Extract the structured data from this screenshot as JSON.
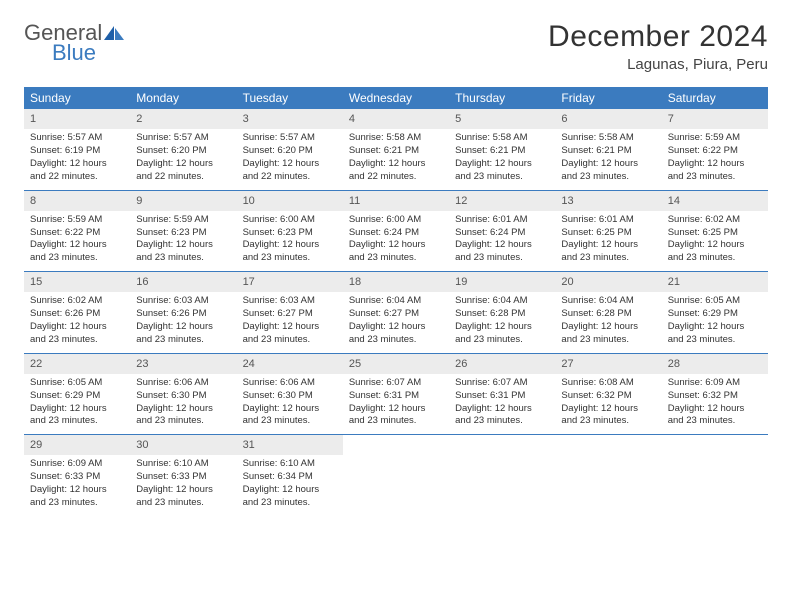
{
  "brand": {
    "name_a": "General",
    "name_b": "Blue",
    "color_a": "#555555",
    "color_b": "#3b7bbf"
  },
  "title": "December 2024",
  "location": "Lagunas, Piura, Peru",
  "header_bg": "#3b7bbf",
  "daynum_bg": "#ececec",
  "border_color": "#3b7bbf",
  "day_names": [
    "Sunday",
    "Monday",
    "Tuesday",
    "Wednesday",
    "Thursday",
    "Friday",
    "Saturday"
  ],
  "weeks": [
    [
      {
        "n": "1",
        "sr": "5:57 AM",
        "ss": "6:19 PM",
        "dl": "12 hours and 22 minutes."
      },
      {
        "n": "2",
        "sr": "5:57 AM",
        "ss": "6:20 PM",
        "dl": "12 hours and 22 minutes."
      },
      {
        "n": "3",
        "sr": "5:57 AM",
        "ss": "6:20 PM",
        "dl": "12 hours and 22 minutes."
      },
      {
        "n": "4",
        "sr": "5:58 AM",
        "ss": "6:21 PM",
        "dl": "12 hours and 22 minutes."
      },
      {
        "n": "5",
        "sr": "5:58 AM",
        "ss": "6:21 PM",
        "dl": "12 hours and 23 minutes."
      },
      {
        "n": "6",
        "sr": "5:58 AM",
        "ss": "6:21 PM",
        "dl": "12 hours and 23 minutes."
      },
      {
        "n": "7",
        "sr": "5:59 AM",
        "ss": "6:22 PM",
        "dl": "12 hours and 23 minutes."
      }
    ],
    [
      {
        "n": "8",
        "sr": "5:59 AM",
        "ss": "6:22 PM",
        "dl": "12 hours and 23 minutes."
      },
      {
        "n": "9",
        "sr": "5:59 AM",
        "ss": "6:23 PM",
        "dl": "12 hours and 23 minutes."
      },
      {
        "n": "10",
        "sr": "6:00 AM",
        "ss": "6:23 PM",
        "dl": "12 hours and 23 minutes."
      },
      {
        "n": "11",
        "sr": "6:00 AM",
        "ss": "6:24 PM",
        "dl": "12 hours and 23 minutes."
      },
      {
        "n": "12",
        "sr": "6:01 AM",
        "ss": "6:24 PM",
        "dl": "12 hours and 23 minutes."
      },
      {
        "n": "13",
        "sr": "6:01 AM",
        "ss": "6:25 PM",
        "dl": "12 hours and 23 minutes."
      },
      {
        "n": "14",
        "sr": "6:02 AM",
        "ss": "6:25 PM",
        "dl": "12 hours and 23 minutes."
      }
    ],
    [
      {
        "n": "15",
        "sr": "6:02 AM",
        "ss": "6:26 PM",
        "dl": "12 hours and 23 minutes."
      },
      {
        "n": "16",
        "sr": "6:03 AM",
        "ss": "6:26 PM",
        "dl": "12 hours and 23 minutes."
      },
      {
        "n": "17",
        "sr": "6:03 AM",
        "ss": "6:27 PM",
        "dl": "12 hours and 23 minutes."
      },
      {
        "n": "18",
        "sr": "6:04 AM",
        "ss": "6:27 PM",
        "dl": "12 hours and 23 minutes."
      },
      {
        "n": "19",
        "sr": "6:04 AM",
        "ss": "6:28 PM",
        "dl": "12 hours and 23 minutes."
      },
      {
        "n": "20",
        "sr": "6:04 AM",
        "ss": "6:28 PM",
        "dl": "12 hours and 23 minutes."
      },
      {
        "n": "21",
        "sr": "6:05 AM",
        "ss": "6:29 PM",
        "dl": "12 hours and 23 minutes."
      }
    ],
    [
      {
        "n": "22",
        "sr": "6:05 AM",
        "ss": "6:29 PM",
        "dl": "12 hours and 23 minutes."
      },
      {
        "n": "23",
        "sr": "6:06 AM",
        "ss": "6:30 PM",
        "dl": "12 hours and 23 minutes."
      },
      {
        "n": "24",
        "sr": "6:06 AM",
        "ss": "6:30 PM",
        "dl": "12 hours and 23 minutes."
      },
      {
        "n": "25",
        "sr": "6:07 AM",
        "ss": "6:31 PM",
        "dl": "12 hours and 23 minutes."
      },
      {
        "n": "26",
        "sr": "6:07 AM",
        "ss": "6:31 PM",
        "dl": "12 hours and 23 minutes."
      },
      {
        "n": "27",
        "sr": "6:08 AM",
        "ss": "6:32 PM",
        "dl": "12 hours and 23 minutes."
      },
      {
        "n": "28",
        "sr": "6:09 AM",
        "ss": "6:32 PM",
        "dl": "12 hours and 23 minutes."
      }
    ],
    [
      {
        "n": "29",
        "sr": "6:09 AM",
        "ss": "6:33 PM",
        "dl": "12 hours and 23 minutes."
      },
      {
        "n": "30",
        "sr": "6:10 AM",
        "ss": "6:33 PM",
        "dl": "12 hours and 23 minutes."
      },
      {
        "n": "31",
        "sr": "6:10 AM",
        "ss": "6:34 PM",
        "dl": "12 hours and 23 minutes."
      },
      null,
      null,
      null,
      null
    ]
  ],
  "labels": {
    "sunrise": "Sunrise:",
    "sunset": "Sunset:",
    "daylight": "Daylight:"
  }
}
